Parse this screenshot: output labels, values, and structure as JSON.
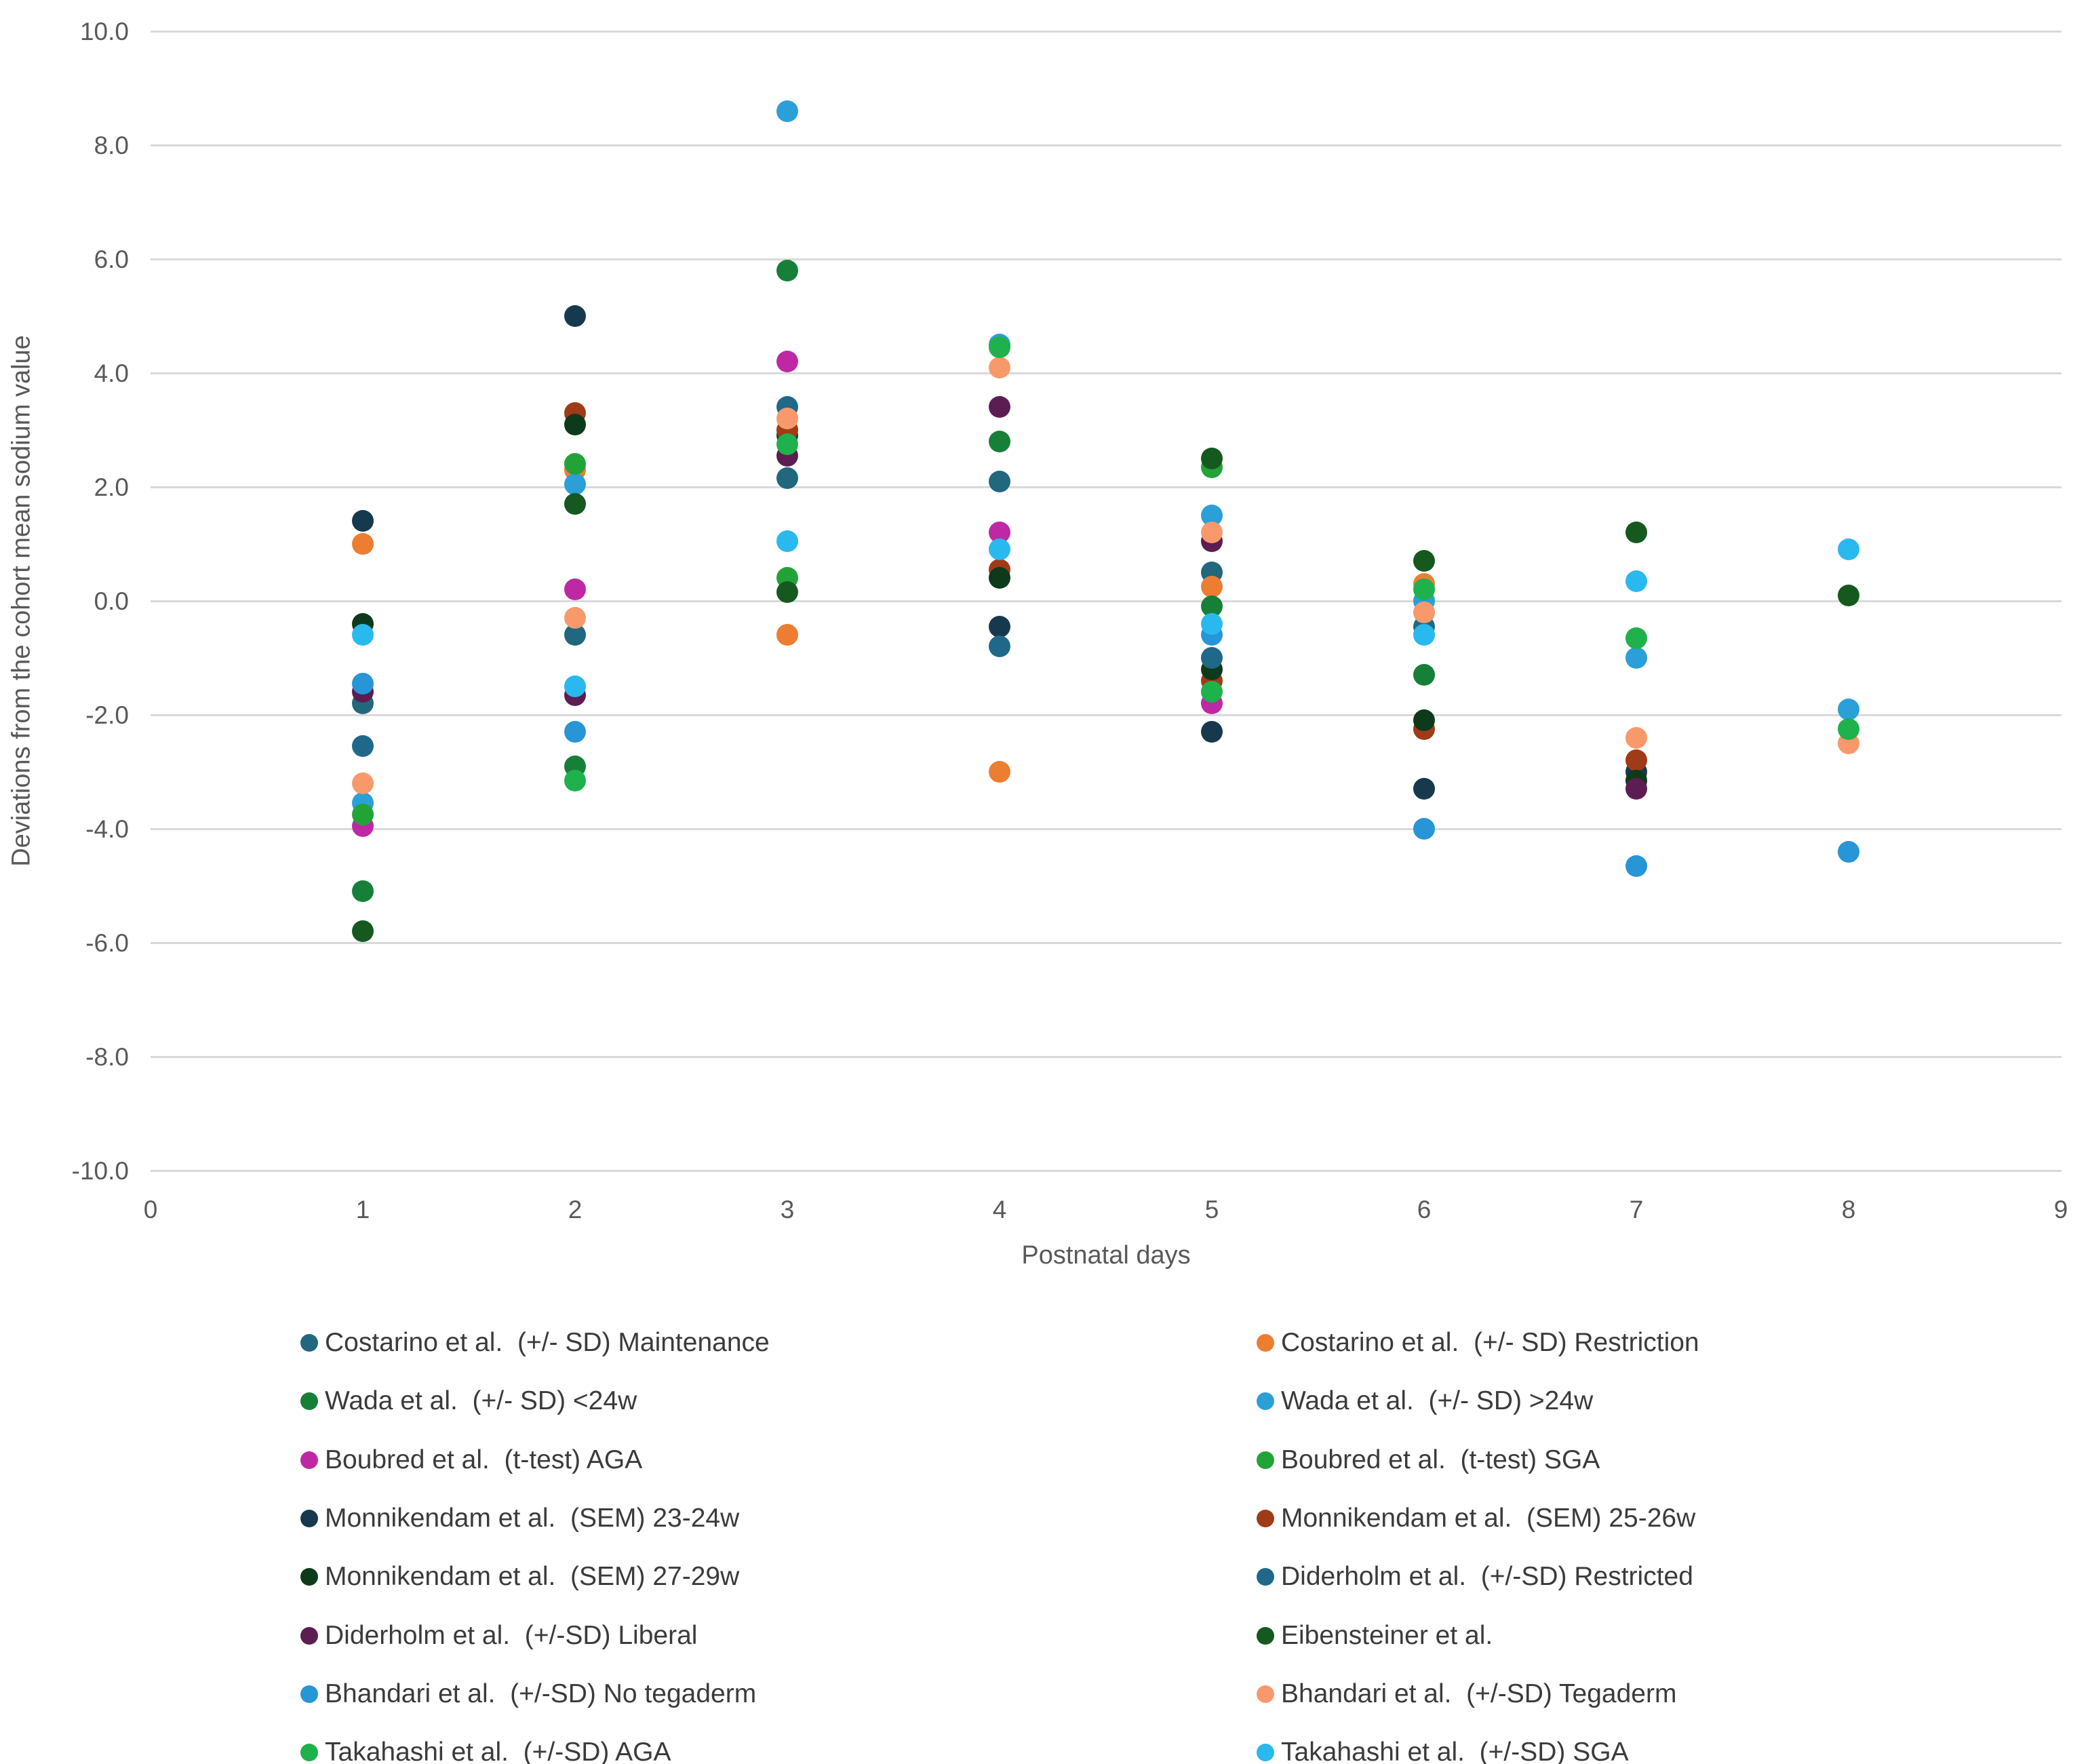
{
  "chart_data": {
    "type": "scatter",
    "title": "",
    "xlabel": "Postnatal days",
    "ylabel": "Deviations from the cohort mean sodium value",
    "xlim": [
      0,
      9
    ],
    "ylim": [
      -10,
      10
    ],
    "grid": "horizontal",
    "legend_position": "bottom, two columns, row-major",
    "marker": "filled circle",
    "x_ticks": [
      {
        "value": 0,
        "label": "0"
      },
      {
        "value": 1,
        "label": "1"
      },
      {
        "value": 2,
        "label": "2"
      },
      {
        "value": 3,
        "label": "3"
      },
      {
        "value": 4,
        "label": "4"
      },
      {
        "value": 5,
        "label": "5"
      },
      {
        "value": 6,
        "label": "6"
      },
      {
        "value": 7,
        "label": "7"
      },
      {
        "value": 8,
        "label": "8"
      },
      {
        "value": 9,
        "label": "9"
      }
    ],
    "y_ticks": [
      {
        "value": 10,
        "label": "10.0"
      },
      {
        "value": 8,
        "label": "8.0"
      },
      {
        "value": 6,
        "label": "6.0"
      },
      {
        "value": 4,
        "label": "4.0"
      },
      {
        "value": 2,
        "label": "2.0"
      },
      {
        "value": 0,
        "label": "0.0"
      },
      {
        "value": -2,
        "label": "-2.0"
      },
      {
        "value": -4,
        "label": "-4.0"
      },
      {
        "value": -6,
        "label": "-6.0"
      },
      {
        "value": -8,
        "label": "-8.0"
      },
      {
        "value": -10,
        "label": "-10.0"
      }
    ],
    "series": [
      {
        "name": "Costarino et al.  (+/- SD) Maintenance",
        "color": "#21677E",
        "points": [
          [
            1,
            -1.8
          ],
          [
            2,
            -0.6
          ],
          [
            3,
            2.15
          ],
          [
            4,
            2.1
          ],
          [
            5,
            0.5
          ]
        ]
      },
      {
        "name": "Costarino et al.  (+/- SD) Restriction",
        "color": "#ED7D31",
        "points": [
          [
            1,
            1.0
          ],
          [
            2,
            2.3
          ],
          [
            3,
            -0.6
          ],
          [
            4,
            -3.0
          ],
          [
            5,
            0.25
          ],
          [
            6,
            0.3
          ]
        ]
      },
      {
        "name": "Wada et al.  (+/- SD) <24w",
        "color": "#168039",
        "points": [
          [
            1,
            -5.1
          ],
          [
            2,
            -2.9
          ],
          [
            3,
            5.8
          ],
          [
            4,
            2.8
          ],
          [
            5,
            -0.1
          ],
          [
            6,
            -1.3
          ]
        ]
      },
      {
        "name": "Wada et al.  (+/- SD) >24w",
        "color": "#2B9FD8",
        "points": [
          [
            1,
            -3.55
          ],
          [
            2,
            2.05
          ],
          [
            3,
            8.6
          ],
          [
            4,
            4.5
          ],
          [
            5,
            1.5
          ],
          [
            6,
            0.0
          ],
          [
            7,
            -1.0
          ],
          [
            8,
            -1.9
          ]
        ]
      },
      {
        "name": "Boubred et al.  (t-test) AGA",
        "color": "#BF28A5",
        "points": [
          [
            1,
            -3.95
          ],
          [
            2,
            0.2
          ],
          [
            3,
            4.2
          ],
          [
            4,
            1.2
          ],
          [
            5,
            -1.8
          ]
        ]
      },
      {
        "name": "Boubred et al.  (t-test) SGA",
        "color": "#22A338",
        "points": [
          [
            1,
            -3.75
          ],
          [
            2,
            2.4
          ],
          [
            3,
            0.4
          ],
          [
            5,
            2.35
          ]
        ]
      },
      {
        "name": "Monnikendam et al.  (SEM) 23-24w",
        "color": "#16394E",
        "points": [
          [
            1,
            1.4
          ],
          [
            2,
            5.0
          ],
          [
            3,
            2.9
          ],
          [
            4,
            -0.45
          ],
          [
            5,
            -2.3
          ],
          [
            6,
            -3.3
          ],
          [
            7,
            -3.0
          ]
        ]
      },
      {
        "name": "Monnikendam et al.  (SEM) 25-26w",
        "color": "#A03B17",
        "points": [
          [
            2,
            3.3
          ],
          [
            3,
            3.0
          ],
          [
            4,
            0.55
          ],
          [
            5,
            -1.4
          ],
          [
            6,
            -2.25
          ],
          [
            7,
            -2.8
          ]
        ]
      },
      {
        "name": "Monnikendam et al.  (SEM) 27-29w",
        "color": "#0E3A1C",
        "points": [
          [
            1,
            -0.4
          ],
          [
            2,
            3.1
          ],
          [
            4,
            0.4
          ],
          [
            5,
            -1.2
          ],
          [
            6,
            -2.1
          ],
          [
            7,
            -3.15
          ]
        ]
      },
      {
        "name": "Diderholm et al.  (+/-SD) Restricted",
        "color": "#20688A",
        "points": [
          [
            1,
            -2.55
          ],
          [
            3,
            3.4
          ],
          [
            4,
            -0.8
          ],
          [
            5,
            -1.0
          ],
          [
            6,
            -0.45
          ]
        ]
      },
      {
        "name": "Diderholm et al.  (+/-SD) Liberal",
        "color": "#5C1E52",
        "points": [
          [
            1,
            -1.6
          ],
          [
            2,
            -1.65
          ],
          [
            3,
            2.55
          ],
          [
            4,
            3.4
          ],
          [
            5,
            1.05
          ],
          [
            7,
            -3.3
          ]
        ]
      },
      {
        "name": "Eibensteiner et al.",
        "color": "#15591F",
        "points": [
          [
            1,
            -5.8
          ],
          [
            2,
            1.7
          ],
          [
            3,
            0.15
          ],
          [
            5,
            2.5
          ],
          [
            6,
            0.7
          ],
          [
            7,
            1.2
          ],
          [
            8,
            0.1
          ]
        ]
      },
      {
        "name": "Bhandari et al.  (+/-SD) No tegaderm",
        "color": "#2795D6",
        "points": [
          [
            1,
            -1.45
          ],
          [
            2,
            -2.3
          ],
          [
            5,
            -0.6
          ],
          [
            6,
            -4.0
          ],
          [
            7,
            -4.65
          ],
          [
            8,
            -4.4
          ]
        ]
      },
      {
        "name": "Bhandari et al.  (+/-SD) Tegaderm",
        "color": "#F8996B",
        "points": [
          [
            1,
            -3.2
          ],
          [
            2,
            -0.3
          ],
          [
            3,
            3.2
          ],
          [
            4,
            4.1
          ],
          [
            5,
            1.2
          ],
          [
            6,
            -0.2
          ],
          [
            7,
            -2.4
          ],
          [
            8,
            -2.5
          ]
        ]
      },
      {
        "name": "Takahashi et al.  (+/-SD) AGA",
        "color": "#1FB14B",
        "points": [
          [
            2,
            -3.15
          ],
          [
            3,
            2.75
          ],
          [
            4,
            4.45
          ],
          [
            5,
            -1.6
          ],
          [
            6,
            0.2
          ],
          [
            7,
            -0.65
          ],
          [
            8,
            -2.25
          ]
        ]
      },
      {
        "name": "Takahashi et al.  (+/-SD) SGA",
        "color": "#29B9EE",
        "points": [
          [
            1,
            -0.6
          ],
          [
            2,
            -1.5
          ],
          [
            3,
            1.05
          ],
          [
            4,
            0.9
          ],
          [
            5,
            -0.4
          ],
          [
            6,
            -0.6
          ],
          [
            7,
            0.35
          ],
          [
            8,
            0.9
          ]
        ]
      }
    ]
  }
}
